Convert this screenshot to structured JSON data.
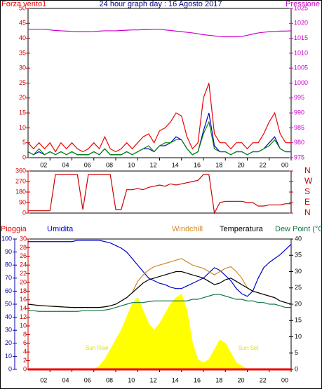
{
  "chart_data": [
    {
      "type": "line",
      "title": "24 hour graph day : 16 Agosto 2017",
      "x": [
        0,
        0.5,
        1,
        1.5,
        2,
        2.5,
        3,
        3.5,
        4,
        4.5,
        5,
        5.5,
        6,
        6.5,
        7,
        7.5,
        8,
        8.5,
        9,
        9.5,
        10,
        10.5,
        11,
        11.5,
        12,
        12.5,
        13,
        13.5,
        14,
        14.5,
        15,
        15.5,
        16,
        16.5,
        17,
        17.5,
        18,
        18.5,
        19,
        19.5,
        20,
        20.5,
        21,
        21.5,
        22,
        22.5,
        23,
        23.5,
        24
      ],
      "xlim": [
        0,
        24
      ],
      "xticks": [
        {
          "value": 2,
          "label": "02"
        },
        {
          "value": 4,
          "label": "04"
        },
        {
          "value": 6,
          "label": "06"
        },
        {
          "value": 8,
          "label": "08"
        },
        10,
        12,
        14,
        16,
        18,
        20,
        22,
        {
          "value": 24,
          "label": "00"
        }
      ],
      "ylim": [
        0,
        50
      ],
      "yticks": [
        0,
        5,
        10,
        15,
        20,
        25,
        30,
        35,
        40,
        45,
        50
      ],
      "y_color": "#cc0000",
      "y2lim": [
        975,
        1025
      ],
      "y2ticks": [
        975,
        980,
        985,
        990,
        995,
        1000,
        1005,
        1010,
        1015,
        1020,
        1025
      ],
      "y2_color": "#cc00cc",
      "series": [
        {
          "name": "Forza vento1",
          "color": "#ee0000",
          "values": [
            5,
            3,
            5,
            3,
            5,
            2,
            5,
            3,
            5,
            3,
            2,
            3,
            5,
            3,
            7,
            3,
            2,
            3,
            5,
            3,
            5,
            7,
            8,
            5,
            9,
            10,
            12,
            15,
            14,
            7,
            3,
            5,
            20,
            25,
            8,
            5,
            5,
            3,
            5,
            5,
            3,
            5,
            5,
            8,
            12,
            15,
            8,
            5,
            5
          ]
        },
        {
          "color": "#0000cc",
          "values": [
            2,
            1,
            2,
            1,
            2,
            1,
            2,
            1,
            2,
            1,
            1,
            1,
            2,
            1,
            3,
            1,
            1,
            1,
            2,
            1,
            2,
            3,
            3,
            2,
            4,
            4,
            5,
            7,
            6,
            3,
            1,
            2,
            9,
            15,
            4,
            2,
            2,
            1,
            2,
            2,
            1,
            2,
            2,
            3,
            5,
            7,
            3,
            2,
            2
          ]
        },
        {
          "color": "#008800",
          "values": [
            2,
            1,
            3,
            1,
            2,
            1,
            2,
            1,
            2,
            1,
            1,
            1,
            2,
            1,
            3,
            1,
            1,
            1,
            2,
            1,
            2,
            3,
            4,
            2,
            4,
            5,
            5,
            6,
            6,
            3,
            1,
            2,
            8,
            12,
            3,
            2,
            2,
            1,
            2,
            2,
            1,
            2,
            2,
            3,
            4,
            6,
            3,
            2,
            2
          ]
        },
        {
          "name": "Pressione",
          "color": "#cc00cc",
          "axis": "y2",
          "values": [
            1018,
            1018,
            1018,
            1018,
            1017.8,
            1017.6,
            1017.5,
            1017.4,
            1017.3,
            1017.2,
            1017.2,
            1017.2,
            1017.3,
            1017.4,
            1017.5,
            1017.5,
            1017.5,
            1017.6,
            1017.7,
            1017.8,
            1017.8,
            1017.9,
            1017.9,
            1018,
            1018,
            1017.8,
            1017.6,
            1017.4,
            1017.2,
            1017,
            1016.8,
            1016.5,
            1016.2,
            1016,
            1015.8,
            1015.6,
            1015.5,
            1015.5,
            1015.5,
            1015.6,
            1016,
            1016.4,
            1016.8,
            1017,
            1017.2,
            1017.3,
            1017.4,
            1017.4,
            1017.5
          ]
        }
      ]
    },
    {
      "type": "line",
      "x": [
        0,
        0.5,
        1,
        1.5,
        2,
        2.5,
        3,
        3.5,
        4,
        4.5,
        5,
        5.5,
        6,
        6.5,
        7,
        7.5,
        8,
        8.5,
        9,
        9.5,
        10,
        10.5,
        11,
        11.5,
        12,
        12.5,
        13,
        13.5,
        14,
        14.5,
        15,
        15.5,
        16,
        16.5,
        17,
        17.5,
        18,
        18.5,
        19,
        19.5,
        20,
        20.5,
        21,
        21.5,
        22,
        22.5,
        23,
        23.5,
        24
      ],
      "xlim": [
        0,
        24
      ],
      "ylim": [
        0,
        360
      ],
      "yticks": [
        0,
        90,
        180,
        270,
        360
      ],
      "y_color": "#cc0000",
      "y2lim": [
        0,
        360
      ],
      "y2ticks": [
        {
          "value": 0,
          "label": "N"
        },
        {
          "value": 90,
          "label": "E"
        },
        {
          "value": 180,
          "label": "S"
        },
        {
          "value": 270,
          "label": "W"
        },
        {
          "value": 360,
          "label": "N"
        }
      ],
      "y2_color": "#cc0000",
      "series": [
        {
          "color": "#cc0000",
          "values": [
            20,
            20,
            20,
            20,
            20,
            330,
            330,
            330,
            330,
            330,
            30,
            330,
            330,
            330,
            330,
            330,
            30,
            30,
            200,
            200,
            210,
            200,
            220,
            230,
            240,
            230,
            250,
            240,
            250,
            260,
            270,
            280,
            330,
            330,
            0,
            90,
            100,
            100,
            100,
            100,
            90,
            90,
            60,
            60,
            70,
            70,
            70,
            80,
            80
          ]
        }
      ]
    },
    {
      "type": "line",
      "x": [
        0,
        0.5,
        1,
        1.5,
        2,
        2.5,
        3,
        3.5,
        4,
        4.5,
        5,
        5.5,
        6,
        6.5,
        7,
        7.5,
        8,
        8.5,
        9,
        9.5,
        10,
        10.5,
        11,
        11.5,
        12,
        12.5,
        13,
        13.5,
        14,
        14.5,
        15,
        15.5,
        16,
        16.5,
        17,
        17.5,
        18,
        18.5,
        19,
        19.5,
        20,
        20.5,
        21,
        21.5,
        22,
        22.5,
        23,
        23.5,
        24
      ],
      "xlim": [
        0,
        24
      ],
      "xticks": [
        {
          "value": 2,
          "label": "02"
        },
        {
          "value": 4,
          "label": "04"
        },
        {
          "value": 6,
          "label": "06"
        },
        {
          "value": 8,
          "label": "08"
        },
        10,
        12,
        14,
        16,
        18,
        20,
        22,
        {
          "value": 24,
          "label": "00"
        }
      ],
      "ylim": [
        0,
        30
      ],
      "yticks": [
        0,
        2,
        4,
        6,
        8,
        10,
        12,
        14,
        16,
        18,
        20,
        22,
        24,
        26,
        28,
        30
      ],
      "y_color": "#cc0000",
      "y3lim": [
        0,
        100
      ],
      "y3ticks": [
        0,
        10,
        20,
        30,
        40,
        50,
        60,
        70,
        80,
        90,
        100
      ],
      "y3_color": "#0000aa",
      "y2lim": [
        0,
        40
      ],
      "y2ticks": [
        0,
        5,
        10,
        15,
        20,
        25,
        30,
        35,
        40
      ],
      "y2_color": "#000000",
      "annotations": [
        "Sun Rise",
        "Sun Set"
      ],
      "series": [
        {
          "color": "#ffff00",
          "axis": "y2",
          "kind": "area",
          "values": [
            0,
            0,
            0,
            0,
            0,
            0,
            0,
            0,
            0,
            0,
            0,
            0,
            0,
            1,
            3,
            6,
            9,
            12,
            16,
            20,
            22,
            18,
            14,
            12,
            14,
            17,
            20,
            22,
            23,
            18,
            8,
            3,
            2,
            3,
            6,
            9,
            8,
            5,
            2,
            1,
            0,
            0,
            0,
            0,
            0,
            0,
            0,
            0,
            0
          ]
        },
        {
          "name": "Pioggia",
          "color": "#ee0000",
          "values": [
            0,
            0,
            0,
            0,
            0,
            0,
            0,
            0,
            0,
            0,
            0,
            0,
            0,
            0,
            0,
            0,
            0,
            0,
            0,
            0,
            0,
            0,
            0,
            0,
            0,
            0,
            0,
            0,
            0,
            0,
            0,
            0,
            0,
            0,
            0,
            0,
            0,
            0,
            0,
            0,
            0,
            0,
            0,
            0,
            0,
            0,
            0,
            0,
            0
          ]
        },
        {
          "name": "Umidita",
          "color": "#0000cc",
          "axis": "y3",
          "values": [
            98,
            98,
            98,
            98,
            98,
            98,
            98,
            98,
            98,
            99,
            99,
            99,
            99,
            99,
            98,
            97,
            95,
            93,
            90,
            85,
            80,
            75,
            70,
            68,
            66,
            65,
            63,
            62,
            62,
            64,
            66,
            68,
            70,
            74,
            78,
            76,
            72,
            68,
            62,
            58,
            56,
            60,
            70,
            78,
            82,
            85,
            88,
            92,
            96
          ]
        },
        {
          "name": "Windchill",
          "color": "#d08a2a",
          "axis": "y2",
          "values": [
            20,
            19.8,
            19.6,
            19.5,
            19.4,
            19.3,
            19.2,
            19.1,
            19,
            19,
            19,
            19,
            19,
            19,
            19.2,
            19.5,
            20,
            21,
            22,
            23.5,
            27,
            29,
            30.5,
            31.5,
            32,
            32.5,
            33,
            33.5,
            34,
            33,
            32,
            31.5,
            31,
            30,
            29,
            30,
            31,
            31.5,
            30,
            28,
            25,
            24,
            23.5,
            23,
            22.5,
            22,
            21,
            20.5,
            20
          ]
        },
        {
          "name": "Temperatura",
          "color": "#000000",
          "axis": "y2",
          "values": [
            20,
            19.8,
            19.6,
            19.5,
            19.4,
            19.3,
            19.2,
            19.1,
            19,
            19,
            19,
            19,
            19,
            19,
            19.2,
            19.5,
            20,
            21,
            22,
            23.5,
            25,
            26.5,
            27.5,
            28,
            28.5,
            29,
            29.5,
            30,
            30,
            29.5,
            29,
            28.5,
            28,
            27,
            26,
            26.5,
            27.5,
            28,
            27,
            26,
            25,
            24,
            23.5,
            23,
            22.5,
            22,
            21,
            20.5,
            20
          ]
        },
        {
          "name": "Dew Point (°C",
          "color": "#117744",
          "axis": "y2",
          "values": [
            18,
            18,
            17.8,
            17.8,
            17.8,
            17.8,
            17.8,
            17.8,
            17.8,
            17.8,
            18,
            18,
            18,
            18,
            18.2,
            18.5,
            19,
            19.5,
            20,
            20.5,
            20.5,
            20.5,
            20.8,
            21,
            21,
            21,
            21,
            21,
            21,
            21,
            21.5,
            21.5,
            22,
            22.5,
            23,
            23,
            22.5,
            22,
            21.5,
            21.5,
            21,
            21,
            20.5,
            20.5,
            20,
            20,
            19.5,
            19,
            19
          ]
        }
      ]
    }
  ]
}
